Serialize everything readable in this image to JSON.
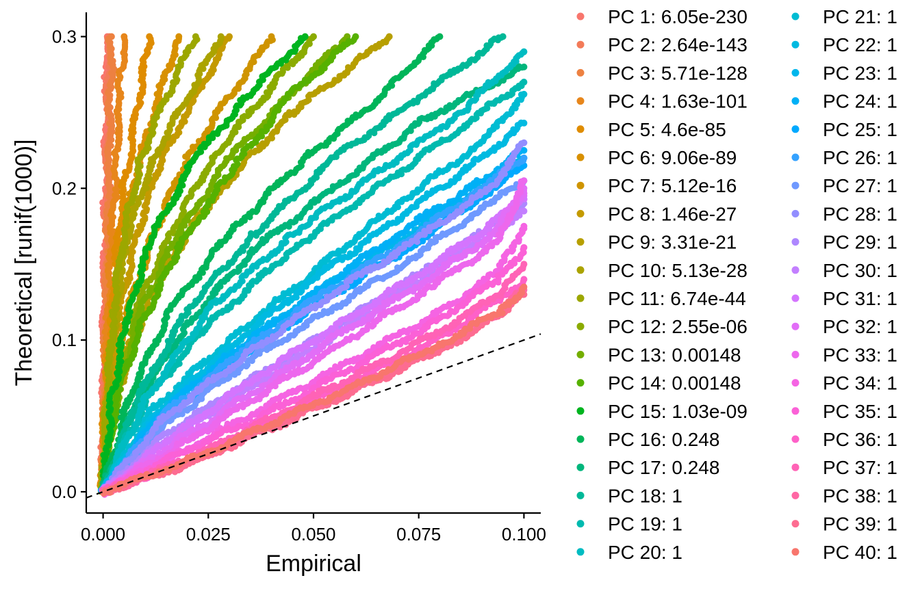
{
  "chart_data": {
    "type": "scatter",
    "title": "",
    "xlabel": "Empirical",
    "ylabel": "Theoretical [runif(1000)]",
    "xlim": [
      -0.004,
      0.104
    ],
    "ylim": [
      -0.014,
      0.316
    ],
    "x_ticks": [
      0.0,
      0.025,
      0.05,
      0.075,
      0.1
    ],
    "x_tick_labels": [
      "0.000",
      "0.025",
      "0.050",
      "0.075",
      "0.100"
    ],
    "y_ticks": [
      0.0,
      0.1,
      0.2,
      0.3
    ],
    "y_tick_labels": [
      "0.0",
      "0.1",
      "0.2",
      "0.3"
    ],
    "grid": false,
    "legend_position": "right",
    "reference_line": {
      "style": "dashed",
      "slope": 1,
      "intercept": 0
    },
    "series": [
      {
        "name": "PC 1: 6.05e-230",
        "color": "#F8766D",
        "x": [
          0,
          0.0002,
          0.0004,
          0.0006,
          0.0008,
          0.001
        ],
        "y": [
          0,
          0.06,
          0.12,
          0.18,
          0.24,
          0.3
        ]
      },
      {
        "name": "PC 2: 2.64e-143",
        "color": "#F37B59",
        "x": [
          0,
          0.0003,
          0.0006,
          0.0009,
          0.0012,
          0.0015
        ],
        "y": [
          0,
          0.06,
          0.12,
          0.18,
          0.24,
          0.3
        ]
      },
      {
        "name": "PC 3: 5.71e-128",
        "color": "#ED8141",
        "x": [
          0,
          0.0004,
          0.0008,
          0.0012,
          0.0016,
          0.002
        ],
        "y": [
          0,
          0.06,
          0.12,
          0.18,
          0.24,
          0.3
        ]
      },
      {
        "name": "PC 4: 1.63e-101",
        "color": "#E7861B",
        "x": [
          0,
          0.0004,
          0.001,
          0.002,
          0.003,
          0.004,
          0.005
        ],
        "y": [
          0,
          0.05,
          0.1,
          0.16,
          0.21,
          0.26,
          0.3
        ]
      },
      {
        "name": "PC 5: 4.6e-85",
        "color": "#DF8C00",
        "x": [
          0,
          0.0005,
          0.0015,
          0.003,
          0.005,
          0.008,
          0.011
        ],
        "y": [
          0,
          0.05,
          0.1,
          0.15,
          0.2,
          0.25,
          0.3
        ]
      },
      {
        "name": "PC 6: 9.06e-89",
        "color": "#D89000",
        "x": [
          0,
          0.0008,
          0.002,
          0.004,
          0.007,
          0.012,
          0.018
        ],
        "y": [
          0,
          0.05,
          0.1,
          0.15,
          0.2,
          0.25,
          0.3
        ]
      },
      {
        "name": "PC 7: 5.12e-16",
        "color": "#CF9400",
        "x": [
          0,
          0.002,
          0.006,
          0.012,
          0.02,
          0.03,
          0.04
        ],
        "y": [
          0,
          0.06,
          0.12,
          0.17,
          0.22,
          0.26,
          0.3
        ]
      },
      {
        "name": "PC 8: 1.46e-27",
        "color": "#C49A00",
        "x": [
          0,
          0.0015,
          0.004,
          0.008,
          0.014,
          0.022,
          0.03
        ],
        "y": [
          0,
          0.06,
          0.12,
          0.17,
          0.22,
          0.26,
          0.3
        ]
      },
      {
        "name": "PC 9: 3.31e-21",
        "color": "#B79F00",
        "x": [
          0,
          0.002,
          0.007,
          0.015,
          0.028,
          0.045,
          0.068
        ],
        "y": [
          0,
          0.05,
          0.1,
          0.15,
          0.2,
          0.25,
          0.3
        ]
      },
      {
        "name": "PC 10: 5.13e-28",
        "color": "#ABA300",
        "x": [
          0,
          0.001,
          0.003,
          0.006,
          0.012,
          0.02,
          0.028
        ],
        "y": [
          0,
          0.06,
          0.12,
          0.17,
          0.22,
          0.26,
          0.3
        ]
      },
      {
        "name": "PC 11: 6.74e-44",
        "color": "#9CA700",
        "x": [
          0,
          0.0008,
          0.0025,
          0.005,
          0.009,
          0.015,
          0.022
        ],
        "y": [
          0,
          0.06,
          0.12,
          0.17,
          0.22,
          0.26,
          0.3
        ]
      },
      {
        "name": "PC 12: 2.55e-06",
        "color": "#8BAB00",
        "x": [
          0,
          0.003,
          0.008,
          0.016,
          0.026,
          0.038,
          0.05
        ],
        "y": [
          0,
          0.06,
          0.12,
          0.17,
          0.22,
          0.26,
          0.3
        ]
      },
      {
        "name": "PC 13: 0.00148",
        "color": "#74AE00",
        "x": [
          0,
          0.003,
          0.009,
          0.018,
          0.03,
          0.044,
          0.058
        ],
        "y": [
          0,
          0.06,
          0.12,
          0.17,
          0.22,
          0.26,
          0.3
        ]
      },
      {
        "name": "PC 14: 0.00148",
        "color": "#56B100",
        "x": [
          0,
          0.003,
          0.009,
          0.018,
          0.03,
          0.044,
          0.06
        ],
        "y": [
          0,
          0.06,
          0.11,
          0.16,
          0.21,
          0.26,
          0.3
        ]
      },
      {
        "name": "PC 15: 1.03e-09",
        "color": "#00B41F",
        "x": [
          0,
          0.002,
          0.006,
          0.012,
          0.022,
          0.034,
          0.048
        ],
        "y": [
          0,
          0.06,
          0.12,
          0.17,
          0.22,
          0.26,
          0.3
        ]
      },
      {
        "name": "PC 16: 0.248",
        "color": "#00B559",
        "x": [
          0,
          0.006,
          0.016,
          0.03,
          0.048,
          0.066,
          0.08
        ],
        "y": [
          0,
          0.06,
          0.12,
          0.17,
          0.22,
          0.26,
          0.3
        ]
      },
      {
        "name": "PC 17: 0.248",
        "color": "#00B67C",
        "x": [
          0,
          0.008,
          0.02,
          0.036,
          0.055,
          0.076,
          0.1
        ],
        "y": [
          0,
          0.06,
          0.11,
          0.16,
          0.2,
          0.245,
          0.28
        ]
      },
      {
        "name": "PC 18: 1",
        "color": "#00B898",
        "x": [
          0,
          0.008,
          0.02,
          0.036,
          0.055,
          0.075,
          0.095
        ],
        "y": [
          0,
          0.06,
          0.12,
          0.17,
          0.22,
          0.26,
          0.3
        ]
      },
      {
        "name": "PC 19: 1",
        "color": "#00BAAF",
        "x": [
          0,
          0.01,
          0.025,
          0.045,
          0.065,
          0.085,
          0.1
        ],
        "y": [
          0,
          0.06,
          0.11,
          0.16,
          0.2,
          0.24,
          0.27
        ]
      },
      {
        "name": "PC 20: 1",
        "color": "#00BCC2",
        "x": [
          0,
          0.01,
          0.025,
          0.045,
          0.065,
          0.085,
          0.1
        ],
        "y": [
          0,
          0.06,
          0.12,
          0.17,
          0.21,
          0.25,
          0.29
        ]
      },
      {
        "name": "PC 21: 1",
        "color": "#00BCD3",
        "x": [
          0,
          0.012,
          0.03,
          0.05,
          0.07,
          0.09,
          0.1
        ],
        "y": [
          0,
          0.055,
          0.1,
          0.145,
          0.19,
          0.23,
          0.262
        ]
      },
      {
        "name": "PC 22: 1",
        "color": "#00BAE1",
        "x": [
          0,
          0.012,
          0.03,
          0.05,
          0.07,
          0.09,
          0.1
        ],
        "y": [
          0,
          0.05,
          0.095,
          0.14,
          0.18,
          0.22,
          0.243
        ]
      },
      {
        "name": "PC 23: 1",
        "color": "#00B6EC",
        "x": [
          0,
          0.013,
          0.03,
          0.05,
          0.07,
          0.09,
          0.1
        ],
        "y": [
          0,
          0.05,
          0.09,
          0.13,
          0.165,
          0.2,
          0.22
        ]
      },
      {
        "name": "PC 24: 1",
        "color": "#00B0F6",
        "x": [
          0,
          0.013,
          0.03,
          0.05,
          0.07,
          0.09,
          0.1
        ],
        "y": [
          0,
          0.05,
          0.09,
          0.13,
          0.17,
          0.205,
          0.225
        ]
      },
      {
        "name": "PC 25: 1",
        "color": "#00A9FF",
        "x": [
          0,
          0.014,
          0.032,
          0.052,
          0.072,
          0.09,
          0.1
        ],
        "y": [
          0,
          0.048,
          0.088,
          0.125,
          0.16,
          0.195,
          0.215
        ]
      },
      {
        "name": "PC 26: 1",
        "color": "#35A2FF",
        "x": [
          0,
          0.014,
          0.032,
          0.052,
          0.072,
          0.09,
          0.1
        ],
        "y": [
          0,
          0.05,
          0.09,
          0.13,
          0.165,
          0.2,
          0.22
        ]
      },
      {
        "name": "PC 27: 1",
        "color": "#6F99FF",
        "x": [
          0,
          0.015,
          0.034,
          0.054,
          0.074,
          0.092,
          0.1
        ],
        "y": [
          0,
          0.045,
          0.085,
          0.12,
          0.155,
          0.19,
          0.205
        ]
      },
      {
        "name": "PC 28: 1",
        "color": "#928EFF",
        "x": [
          0,
          0.015,
          0.034,
          0.054,
          0.074,
          0.092,
          0.1
        ],
        "y": [
          0,
          0.05,
          0.09,
          0.13,
          0.165,
          0.2,
          0.23
        ]
      },
      {
        "name": "PC 29: 1",
        "color": "#AE87FF",
        "x": [
          0,
          0.016,
          0.036,
          0.056,
          0.076,
          0.092,
          0.1
        ],
        "y": [
          0,
          0.04,
          0.075,
          0.11,
          0.145,
          0.175,
          0.19
        ]
      },
      {
        "name": "PC 30: 1",
        "color": "#C37FFF",
        "x": [
          0,
          0.016,
          0.036,
          0.056,
          0.076,
          0.092,
          0.1
        ],
        "y": [
          0,
          0.035,
          0.07,
          0.105,
          0.14,
          0.17,
          0.185
        ]
      },
      {
        "name": "PC 31: 1",
        "color": "#D475FE",
        "x": [
          0,
          0.016,
          0.036,
          0.056,
          0.076,
          0.092,
          0.1
        ],
        "y": [
          0,
          0.035,
          0.075,
          0.11,
          0.145,
          0.175,
          0.195
        ]
      },
      {
        "name": "PC 32: 1",
        "color": "#E26EF7",
        "x": [
          0,
          0.017,
          0.037,
          0.057,
          0.077,
          0.093,
          0.1
        ],
        "y": [
          0,
          0.032,
          0.068,
          0.105,
          0.14,
          0.17,
          0.2
        ]
      },
      {
        "name": "PC 33: 1",
        "color": "#ED68ED",
        "x": [
          0,
          0.018,
          0.038,
          0.058,
          0.078,
          0.094,
          0.1
        ],
        "y": [
          0,
          0.03,
          0.065,
          0.1,
          0.135,
          0.165,
          0.205
        ]
      },
      {
        "name": "PC 34: 1",
        "color": "#F564E3",
        "x": [
          0,
          0.018,
          0.038,
          0.058,
          0.078,
          0.094,
          0.1
        ],
        "y": [
          0,
          0.025,
          0.055,
          0.085,
          0.115,
          0.145,
          0.175
        ]
      },
      {
        "name": "PC 35: 1",
        "color": "#FB61D7",
        "x": [
          0,
          0.018,
          0.038,
          0.058,
          0.078,
          0.094,
          0.1
        ],
        "y": [
          0,
          0.025,
          0.05,
          0.08,
          0.11,
          0.14,
          0.161
        ]
      },
      {
        "name": "PC 36: 1",
        "color": "#FE61C8",
        "x": [
          0,
          0.019,
          0.039,
          0.059,
          0.079,
          0.095,
          0.1
        ],
        "y": [
          0,
          0.02,
          0.045,
          0.072,
          0.1,
          0.128,
          0.14
        ]
      },
      {
        "name": "PC 37: 1",
        "color": "#FF63B6",
        "x": [
          0,
          0.019,
          0.039,
          0.059,
          0.079,
          0.095,
          0.1
        ],
        "y": [
          0,
          0.02,
          0.047,
          0.075,
          0.104,
          0.132,
          0.15
        ]
      },
      {
        "name": "PC 38: 1",
        "color": "#FF67A4",
        "x": [
          0,
          0.019,
          0.039,
          0.059,
          0.079,
          0.095,
          0.1
        ],
        "y": [
          0,
          0.018,
          0.042,
          0.068,
          0.094,
          0.12,
          0.133
        ]
      },
      {
        "name": "PC 39: 1",
        "color": "#FD6C91",
        "x": [
          0,
          0.02,
          0.04,
          0.06,
          0.08,
          0.095,
          0.1
        ],
        "y": [
          0,
          0.018,
          0.042,
          0.067,
          0.093,
          0.118,
          0.13
        ]
      },
      {
        "name": "PC 40: 1",
        "color": "#F8766D",
        "x": [
          0,
          0.02,
          0.04,
          0.06,
          0.08,
          0.095,
          0.1
        ],
        "y": [
          0,
          0.02,
          0.045,
          0.07,
          0.097,
          0.12,
          0.135
        ]
      }
    ]
  }
}
